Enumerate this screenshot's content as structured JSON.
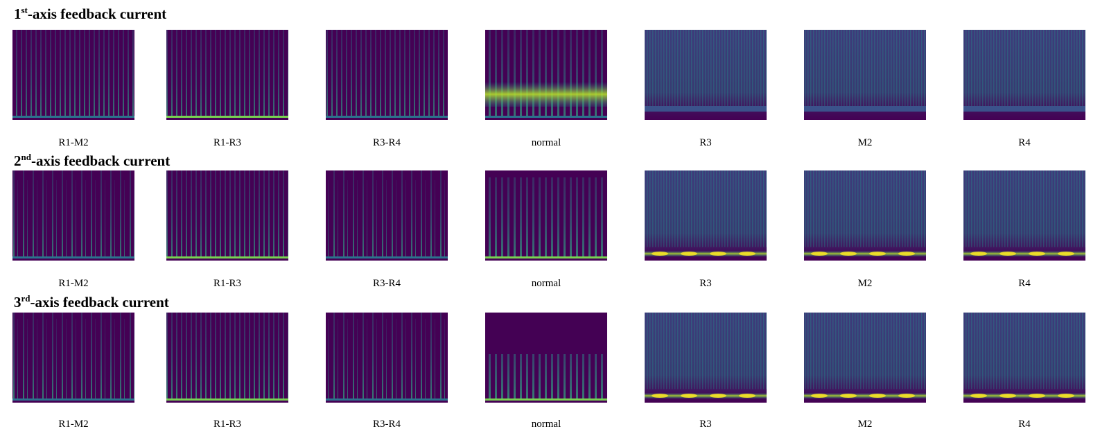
{
  "rows": [
    {
      "title": {
        "number": "1",
        "suffix": "st",
        "text": "-axis feedback current"
      },
      "panels": [
        "R1-M2",
        "R1-R3",
        "R3-R4",
        "normal",
        "R3",
        "M2",
        "R4"
      ]
    },
    {
      "title": {
        "number": "2",
        "suffix": "nd",
        "text": "-axis feedback current"
      },
      "panels": [
        "R1-M2",
        "R1-R3",
        "R3-R4",
        "normal",
        "R3",
        "M2",
        "R4"
      ]
    },
    {
      "title": {
        "number": "3",
        "suffix": "rd",
        "text": "-axis feedback current"
      },
      "panels": [
        "R1-M2",
        "R1-R3",
        "R3-R4",
        "normal",
        "R3",
        "M2",
        "R4"
      ]
    }
  ]
}
